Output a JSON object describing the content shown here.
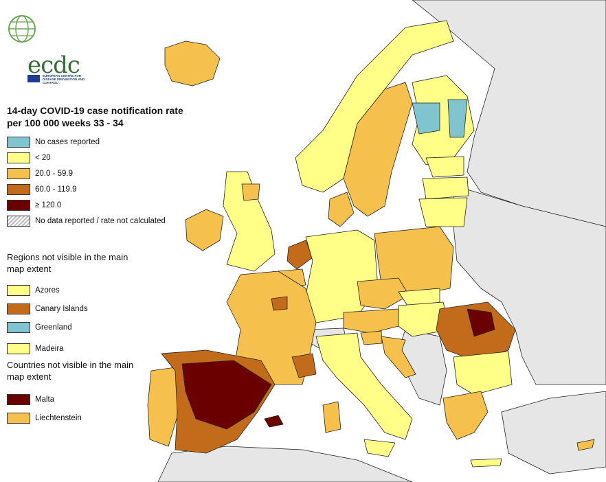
{
  "colors": {
    "sea": "#ffffff",
    "non_eu_land": "#e6e6e6",
    "border": "#222222",
    "no_cases": "#7fc4cf",
    "lt20": "#ffff88",
    "r20_59": "#f5c14c",
    "r60_119": "#c26c1b",
    "ge120": "#6b0000",
    "no_data": "#bbbbbb"
  },
  "logo": {
    "text": "ecdc",
    "subtitle": "EUROPEAN CENTRE FOR DISEASE PREVENTION AND CONTROL",
    "icon": "globe-icon"
  },
  "title": "14-day COVID-19 case notification rate per 100 000 weeks 33 - 34",
  "legend": [
    {
      "label": "No cases reported",
      "color": "#7fc4cf"
    },
    {
      "label": "< 20",
      "color": "#ffff88"
    },
    {
      "label": "20.0 - 59.9",
      "color": "#f5c14c"
    },
    {
      "label": "60.0 - 119.9",
      "color": "#c26c1b"
    },
    {
      "label": "≥ 120.0",
      "color": "#6b0000"
    },
    {
      "label": "No data reported / rate not calculated",
      "color": "hatched-grey"
    }
  ],
  "regions_not_visible": {
    "heading": "Regions not visible in the main map extent",
    "items": [
      {
        "label": "Azores",
        "color": "#ffff88"
      },
      {
        "label": "Canary Islands",
        "color": "#c26c1b"
      },
      {
        "label": "Greenland",
        "color": "#7fc4cf"
      },
      {
        "label": "Madeira",
        "color": "#ffff88"
      }
    ]
  },
  "countries_not_visible": {
    "heading": "Countries not visible in the main map extent",
    "items": [
      {
        "label": "Malta",
        "color": "#6b0000"
      },
      {
        "label": "Liechtenstein",
        "color": "#f5c14c"
      }
    ]
  }
}
